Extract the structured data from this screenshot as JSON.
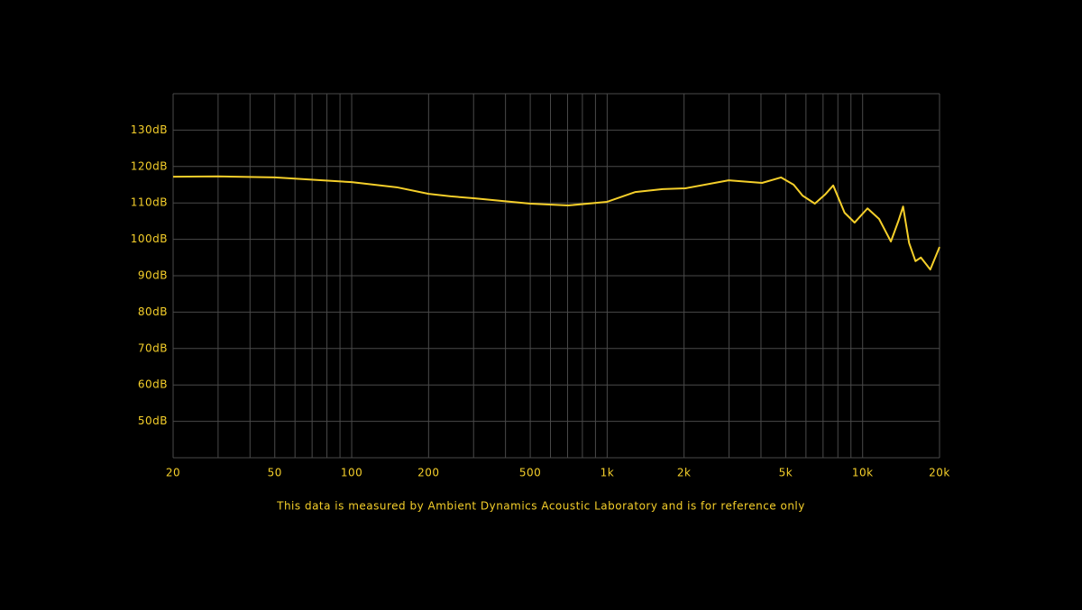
{
  "chart_data": {
    "type": "line",
    "x_scale": "log",
    "note": "This data is measured by Ambient Dynamics Acoustic Laboratory and is for reference only",
    "x": [
      20,
      30,
      50,
      100,
      150,
      200,
      244,
      300,
      500,
      703,
      1000,
      1290,
      1650,
      2020,
      2990,
      4040,
      4790,
      5370,
      5820,
      6500,
      7130,
      7670,
      8500,
      9300,
      10450,
      11600,
      12900,
      13800,
      14400,
      15200,
      16100,
      16900,
      18400,
      20000
    ],
    "values": [
      117.2,
      117.3,
      117,
      115.7,
      114.3,
      112.5,
      111.8,
      111.3,
      109.8,
      109.3,
      110.3,
      113,
      113.8,
      114,
      116.2,
      115.5,
      117,
      115,
      112,
      109.8,
      112.3,
      114.8,
      107.3,
      104.6,
      108.5,
      105.6,
      99.4,
      105,
      109,
      99,
      94,
      95,
      91.7,
      97.9
    ],
    "color": "#f5cf2a",
    "xlim": [
      20,
      20000
    ],
    "ylim": [
      40,
      140
    ],
    "xticks": [
      20,
      50,
      100,
      200,
      500,
      {
        "value": 1000,
        "label": "1k"
      },
      {
        "value": 2000,
        "label": "2k"
      },
      {
        "value": 5000,
        "label": "5k"
      },
      {
        "value": 10000,
        "label": "10k"
      },
      {
        "value": 20000,
        "label": "20k"
      }
    ],
    "x_minor_gridlines": [
      30,
      40,
      60,
      70,
      80,
      90,
      300,
      400,
      600,
      700,
      800,
      900,
      3000,
      4000,
      6000,
      7000,
      8000,
      9000
    ],
    "yticks": [
      {
        "value": 50,
        "label": "50dB"
      },
      {
        "value": 60,
        "label": "60dB"
      },
      {
        "value": 70,
        "label": "70dB"
      },
      {
        "value": 80,
        "label": "80dB"
      },
      {
        "value": 90,
        "label": "90dB"
      },
      {
        "value": 100,
        "label": "100dB"
      },
      {
        "value": 110,
        "label": "110dB"
      },
      {
        "value": 120,
        "label": "120dB"
      },
      {
        "value": 130,
        "label": "130dB"
      }
    ],
    "grid": true
  }
}
